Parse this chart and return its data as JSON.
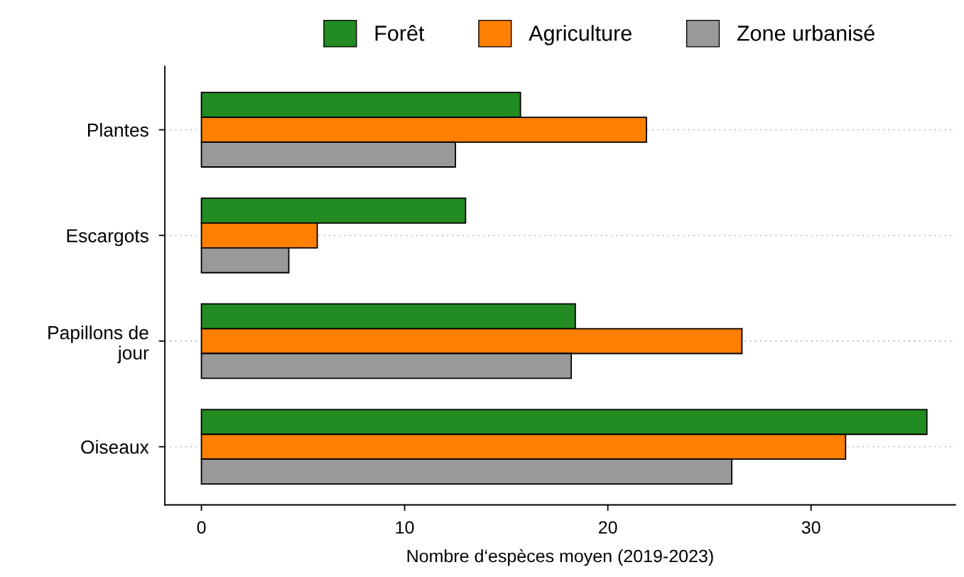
{
  "chart_data": {
    "type": "bar",
    "orientation": "horizontal",
    "xlabel": "Nombre d‘espèces moyen (2019-2023)",
    "categories": [
      "Plantes",
      "Escargots",
      "Papillons de\njour",
      "Oiseaux"
    ],
    "series": [
      {
        "name": "Forêt",
        "color": "#228b22",
        "values": [
          15.7,
          13.0,
          18.4,
          35.7
        ]
      },
      {
        "name": "Agriculture",
        "color": "#ff7f00",
        "values": [
          21.9,
          5.7,
          26.6,
          31.7
        ]
      },
      {
        "name": "Zone urbanisé",
        "color": "#999999",
        "values": [
          12.5,
          4.3,
          18.2,
          26.1
        ]
      }
    ],
    "xlim": [
      -1.8,
      37.1
    ],
    "xticks": [
      0,
      10,
      20,
      30
    ],
    "grid": "y",
    "legend": "top"
  }
}
